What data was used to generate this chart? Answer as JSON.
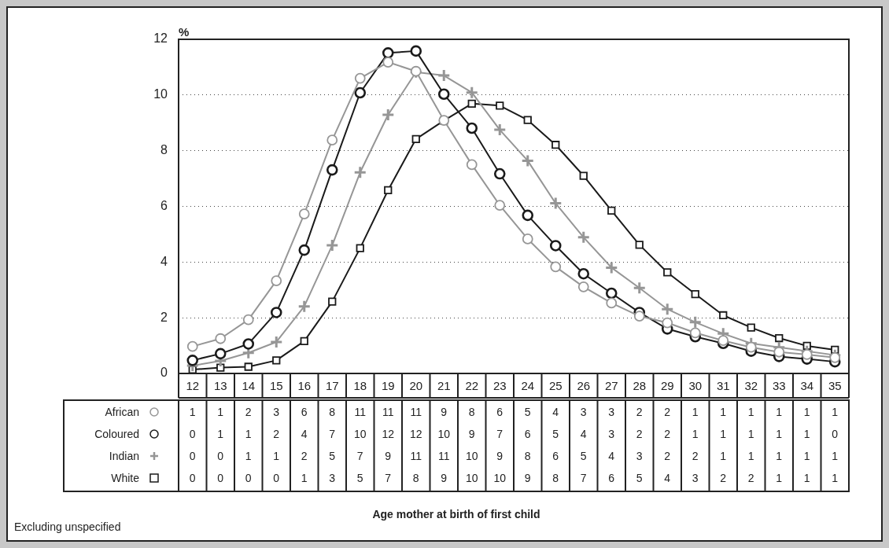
{
  "chart_data": {
    "type": "line",
    "ylabel": "%",
    "annotations": [
      "Excluding unspecified",
      "Age mother at birth of first child"
    ],
    "categories": [
      "12",
      "13",
      "14",
      "15",
      "16",
      "17",
      "18",
      "19",
      "20",
      "21",
      "22",
      "23",
      "24",
      "25",
      "26",
      "27",
      "28",
      "29",
      "30",
      "31",
      "32",
      "33",
      "34",
      "35"
    ],
    "ylim": [
      0,
      12
    ],
    "yticks": [
      0,
      2,
      4,
      6,
      8,
      10,
      12
    ],
    "grid": "y",
    "legend": "bottom left",
    "series": [
      {
        "name": "African",
        "color": "#969696",
        "marker": "circle",
        "values": [
          0.97,
          1.25,
          1.93,
          3.33,
          5.73,
          8.38,
          10.6,
          11.18,
          10.85,
          9.09,
          7.5,
          6.04,
          4.83,
          3.83,
          3.11,
          2.53,
          2.06,
          1.82,
          1.46,
          1.18,
          0.94,
          0.77,
          0.68,
          0.57
        ],
        "value_labels": [
          "1",
          "1",
          "2",
          "3",
          "6",
          "8",
          "11",
          "11",
          "11",
          "9",
          "8",
          "6",
          "5",
          "4",
          "3",
          "3",
          "2",
          "2",
          "1",
          "1",
          "1",
          "1",
          "1",
          "1"
        ]
      },
      {
        "name": "Coloured",
        "color": "#1a1a1a",
        "marker": "circle",
        "values": [
          0.47,
          0.71,
          1.06,
          2.19,
          4.43,
          7.31,
          10.08,
          11.51,
          11.58,
          10.03,
          8.81,
          7.17,
          5.68,
          4.59,
          3.58,
          2.88,
          2.19,
          1.6,
          1.32,
          1.08,
          0.8,
          0.61,
          0.52,
          0.42
        ],
        "value_labels": [
          "0",
          "1",
          "1",
          "2",
          "4",
          "7",
          "10",
          "12",
          "12",
          "10",
          "9",
          "7",
          "6",
          "5",
          "4",
          "3",
          "2",
          "2",
          "1",
          "1",
          "1",
          "1",
          "1",
          "0"
        ]
      },
      {
        "name": "Indian",
        "color": "#969696",
        "marker": "cross",
        "values": [
          0.28,
          0.45,
          0.74,
          1.13,
          2.41,
          4.6,
          7.22,
          9.29,
          10.82,
          10.7,
          10.09,
          8.75,
          7.64,
          6.11,
          4.89,
          3.8,
          3.07,
          2.31,
          1.84,
          1.43,
          1.08,
          0.94,
          0.8,
          0.66
        ],
        "value_labels": [
          "0",
          "0",
          "1",
          "1",
          "2",
          "5",
          "7",
          "9",
          "11",
          "11",
          "10",
          "9",
          "8",
          "6",
          "5",
          "4",
          "3",
          "2",
          "2",
          "1",
          "1",
          "1",
          "1",
          "1"
        ]
      },
      {
        "name": "White",
        "color": "#1a1a1a",
        "marker": "square",
        "values": [
          0.14,
          0.21,
          0.24,
          0.47,
          1.16,
          2.58,
          4.5,
          6.58,
          8.42,
          9.08,
          9.69,
          9.62,
          9.1,
          8.21,
          7.1,
          5.85,
          4.62,
          3.63,
          2.85,
          2.09,
          1.65,
          1.27,
          0.99,
          0.85
        ],
        "value_labels": [
          "0",
          "0",
          "0",
          "0",
          "1",
          "3",
          "5",
          "7",
          "8",
          "9",
          "10",
          "10",
          "9",
          "8",
          "7",
          "6",
          "5",
          "4",
          "3",
          "2",
          "2",
          "1",
          "1",
          "1"
        ]
      }
    ]
  }
}
